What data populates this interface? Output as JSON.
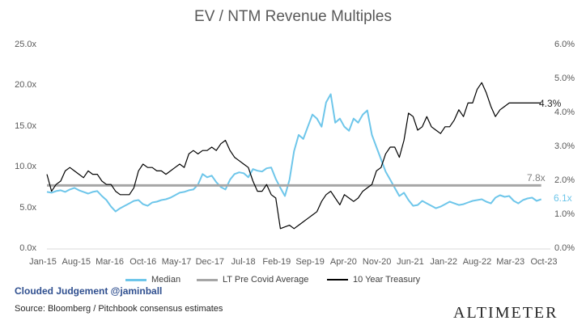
{
  "chart_data": {
    "type": "line",
    "title": "EV / NTM Revenue Multiples",
    "x_tick_labels": [
      "Jan-15",
      "Aug-15",
      "Mar-16",
      "Oct-16",
      "May-17",
      "Dec-17",
      "Jul-18",
      "Feb-19",
      "Sep-19",
      "Apr-20",
      "Nov-20",
      "Jun-21",
      "Jan-22",
      "Aug-22",
      "Mar-23",
      "Oct-23"
    ],
    "y_left": {
      "ticks": [
        "0.0x",
        "5.0x",
        "10.0x",
        "15.0x",
        "20.0x",
        "25.0x"
      ],
      "range": [
        0,
        25
      ]
    },
    "y_right": {
      "ticks": [
        "0.0%",
        "1.0%",
        "2.0%",
        "3.0%",
        "4.0%",
        "5.0%",
        "6.0%"
      ],
      "range": [
        0,
        6
      ]
    },
    "x_range": [
      0,
      110
    ],
    "series": [
      {
        "name": "Median",
        "axis": "left",
        "color": "#6ec6ea",
        "x": [
          0,
          1,
          2,
          3,
          4,
          5,
          6,
          7,
          8,
          9,
          10,
          11,
          12,
          13,
          14,
          15,
          16,
          17,
          18,
          19,
          20,
          21,
          22,
          23,
          24,
          25,
          26,
          27,
          28,
          29,
          30,
          31,
          32,
          33,
          34,
          35,
          36,
          37,
          38,
          39,
          40,
          41,
          42,
          43,
          44,
          45,
          46,
          47,
          48,
          49,
          50,
          51,
          52,
          53,
          54,
          55,
          56,
          57,
          58,
          59,
          60,
          61,
          62,
          63,
          64,
          65,
          66,
          67,
          68,
          69,
          70,
          71,
          72,
          73,
          74,
          75,
          76,
          77,
          78,
          79,
          80,
          81,
          82,
          83,
          84,
          85,
          86,
          87,
          88,
          89,
          90,
          91,
          92,
          93,
          94,
          95,
          96,
          97,
          98,
          99,
          100,
          101,
          102,
          103,
          104,
          105,
          106,
          107,
          108
        ],
        "values": [
          7.0,
          6.9,
          7.1,
          7.2,
          7.0,
          7.3,
          7.5,
          7.2,
          7.0,
          6.8,
          7.0,
          7.1,
          6.5,
          6.0,
          5.2,
          4.6,
          5.0,
          5.3,
          5.6,
          5.9,
          6.0,
          5.5,
          5.3,
          5.7,
          5.8,
          6.0,
          6.1,
          6.3,
          6.6,
          6.9,
          7.0,
          7.2,
          7.3,
          7.9,
          9.2,
          8.8,
          9.0,
          8.2,
          7.6,
          7.3,
          8.5,
          9.2,
          9.4,
          9.3,
          8.8,
          9.8,
          9.6,
          9.5,
          9.9,
          10.0,
          8.6,
          7.5,
          6.5,
          8.5,
          12.0,
          14.0,
          13.5,
          15.0,
          16.5,
          16.0,
          15.0,
          18.0,
          19.0,
          15.5,
          16.0,
          15.0,
          14.5,
          16.0,
          15.5,
          16.5,
          17.0,
          14.0,
          12.5,
          11.0,
          9.5,
          8.5,
          7.5,
          6.5,
          6.9,
          6.0,
          5.3,
          5.4,
          5.9,
          5.6,
          5.3,
          5.0,
          5.2,
          5.5,
          5.8,
          5.6,
          5.4,
          5.5,
          5.7,
          5.9,
          6.0,
          6.1,
          5.8,
          5.6,
          6.3,
          6.6,
          6.4,
          6.5,
          5.9,
          5.6,
          6.0,
          6.2,
          6.3,
          5.9,
          6.1
        ]
      },
      {
        "name": "LT Pre Covid Average",
        "axis": "left",
        "color": "#a6a6a6",
        "x": [
          0,
          108
        ],
        "values": [
          7.8,
          7.8
        ]
      },
      {
        "name": "10 Year Treasury",
        "axis": "right",
        "color": "#000000",
        "x": [
          0,
          1,
          2,
          3,
          4,
          5,
          6,
          7,
          8,
          9,
          10,
          11,
          12,
          13,
          14,
          15,
          16,
          17,
          18,
          19,
          20,
          21,
          22,
          23,
          24,
          25,
          26,
          27,
          28,
          29,
          30,
          31,
          32,
          33,
          34,
          35,
          36,
          37,
          38,
          39,
          40,
          41,
          42,
          43,
          44,
          45,
          46,
          47,
          48,
          49,
          50,
          51,
          52,
          53,
          54,
          55,
          56,
          57,
          58,
          59,
          60,
          61,
          62,
          63,
          64,
          65,
          66,
          67,
          68,
          69,
          70,
          71,
          72,
          73,
          74,
          75,
          76,
          77,
          78,
          79,
          80,
          81,
          82,
          83,
          84,
          85,
          86,
          87,
          88,
          89,
          90,
          91,
          92,
          93,
          94,
          95,
          96,
          97,
          98,
          99,
          100,
          101,
          102,
          103,
          104,
          105,
          106,
          107,
          108
        ],
        "values": [
          2.2,
          1.7,
          1.9,
          2.0,
          2.3,
          2.4,
          2.3,
          2.2,
          2.1,
          2.3,
          2.2,
          2.2,
          2.0,
          1.9,
          1.9,
          1.7,
          1.6,
          1.6,
          1.6,
          1.8,
          2.3,
          2.5,
          2.4,
          2.4,
          2.3,
          2.3,
          2.2,
          2.3,
          2.4,
          2.5,
          2.4,
          2.8,
          2.9,
          2.8,
          2.9,
          2.9,
          3.0,
          2.9,
          3.1,
          3.2,
          2.9,
          2.7,
          2.6,
          2.5,
          2.4,
          2.0,
          1.7,
          1.7,
          1.9,
          1.6,
          1.5,
          0.6,
          0.65,
          0.7,
          0.6,
          0.7,
          0.8,
          0.9,
          1.0,
          1.1,
          1.4,
          1.6,
          1.7,
          1.5,
          1.3,
          1.6,
          1.5,
          1.4,
          1.5,
          1.7,
          1.8,
          1.9,
          2.3,
          2.4,
          2.8,
          3.0,
          3.0,
          2.7,
          3.2,
          4.0,
          3.9,
          3.5,
          3.6,
          3.9,
          3.6,
          3.5,
          3.4,
          3.6,
          3.6,
          3.8,
          4.1,
          3.9,
          4.3,
          4.3,
          4.7,
          4.9,
          4.6,
          4.2,
          3.9,
          4.1,
          4.2,
          4.3,
          4.3,
          4.3,
          4.3,
          4.3,
          4.3,
          4.3,
          4.3
        ]
      }
    ],
    "annotations": [
      {
        "text": "4.3%",
        "color": "#262626"
      },
      {
        "text": "7.8x",
        "color": "#7f7f7f"
      },
      {
        "text": "6.1x",
        "color": "#6ec6ea"
      }
    ],
    "legend": {
      "position": "bottom",
      "items": [
        "Median",
        "LT Pre Covid Average",
        "10 Year Treasury"
      ]
    },
    "grid": false
  },
  "footer": {
    "watermark": "Clouded Judgement @jaminball",
    "source": "Source: Bloomberg / Pitchbook consensus estimates",
    "brand": "ALTIMETER"
  }
}
